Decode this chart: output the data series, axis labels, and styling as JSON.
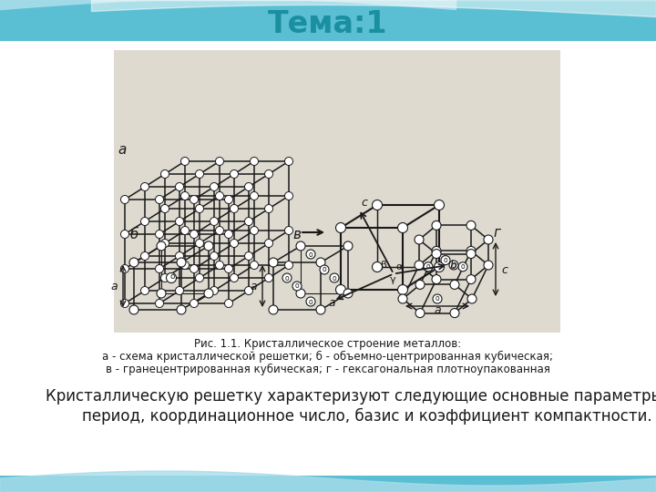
{
  "title": "Тема:1",
  "title_color": "#1a8fa0",
  "title_fontsize": 24,
  "bg_top_color": "#7ecee0",
  "bg_white": "#ffffff",
  "img_bg": "#dedad0",
  "line_color": "#1a1a1a",
  "caption_line1": "Рис. 1.1. Кристаллическое строение металлов:",
  "caption_line2": "а - схема кристаллической решетки; б - объемно-центрированная кубическая;",
  "caption_line3": "в - гранецентрированная кубическая; г - гексагональная плотноупакованная",
  "body_line1": "Кристаллическую решетку характеризуют следующие основные параметры:",
  "body_line2": "период, координационное число, базис и коэффициент компактности.",
  "caption_fs": 8.5,
  "body_fs": 12
}
